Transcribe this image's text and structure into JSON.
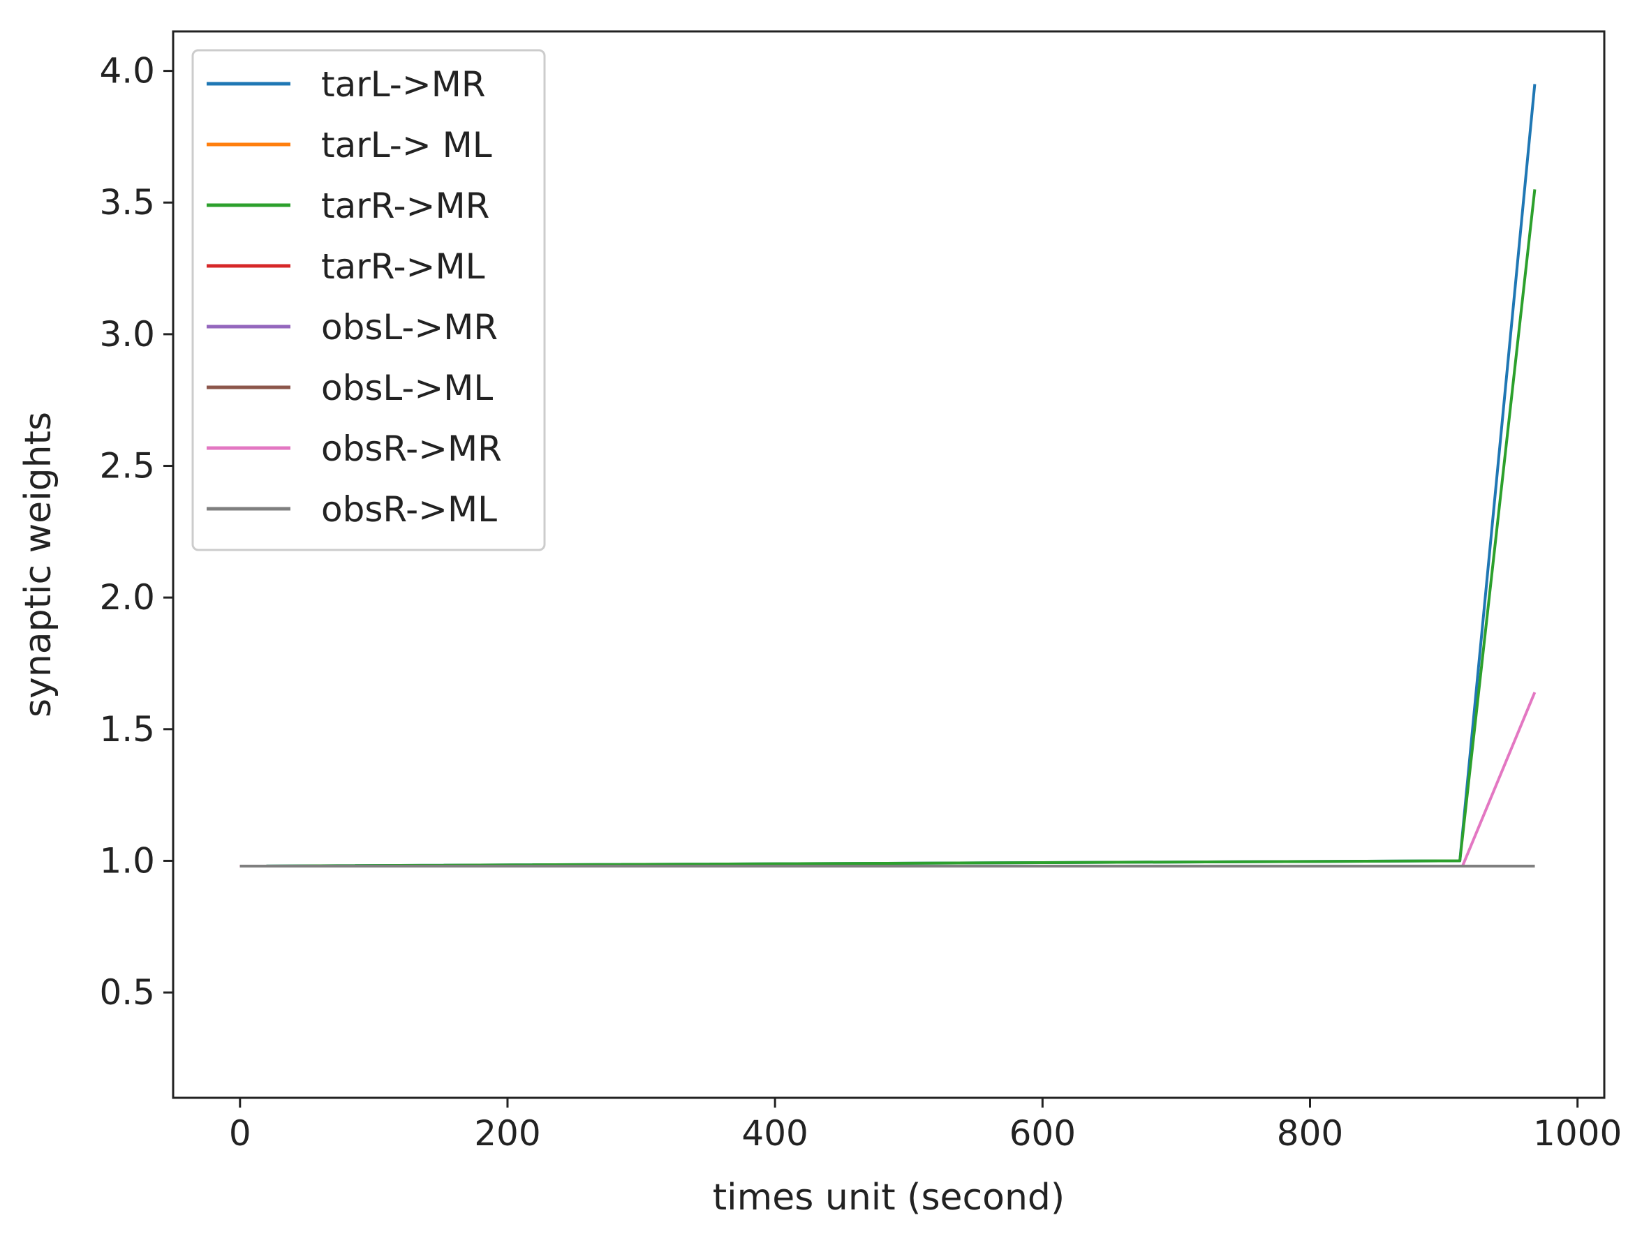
{
  "chart_data": {
    "type": "line",
    "title": "",
    "xlabel": "times unit (second)",
    "ylabel": "synaptic weights",
    "xlim": [
      -50,
      1020
    ],
    "ylim": [
      0.1,
      4.15
    ],
    "xticks": [
      0,
      200,
      400,
      600,
      800,
      1000
    ],
    "yticks": [
      0.5,
      1.0,
      1.5,
      2.0,
      2.5,
      3.0,
      3.5,
      4.0
    ],
    "xtick_labels": [
      "0",
      "200",
      "400",
      "600",
      "800",
      "1000"
    ],
    "ytick_labels": [
      "0.5",
      "1.0",
      "1.5",
      "2.0",
      "2.5",
      "3.0",
      "3.5",
      "4.0"
    ],
    "grid": false,
    "legend_position": "top-left",
    "series": [
      {
        "name": "tarL->MR",
        "color": "#1f77b4",
        "x": [
          0,
          912,
          968
        ],
        "y": [
          0.98,
          1.0,
          3.95
        ]
      },
      {
        "name": "tarL-> ML",
        "color": "#ff7f0e",
        "x": [
          0,
          968
        ],
        "y": [
          0.98,
          0.98
        ]
      },
      {
        "name": "tarR->MR",
        "color": "#2ca02c",
        "x": [
          0,
          912,
          968
        ],
        "y": [
          0.98,
          1.0,
          3.55
        ]
      },
      {
        "name": "tarR->ML",
        "color": "#d62728",
        "x": [
          0,
          968
        ],
        "y": [
          0.98,
          0.98
        ]
      },
      {
        "name": "obsL->MR",
        "color": "#9467bd",
        "x": [
          0,
          968
        ],
        "y": [
          0.98,
          0.98
        ]
      },
      {
        "name": "obsL->ML",
        "color": "#8c564b",
        "x": [
          0,
          968
        ],
        "y": [
          0.98,
          0.98
        ]
      },
      {
        "name": "obsR->MR",
        "color": "#e377c2",
        "x": [
          0,
          914,
          968
        ],
        "y": [
          0.98,
          0.98,
          1.64
        ]
      },
      {
        "name": "obsR->ML",
        "color": "#7f7f7f",
        "x": [
          0,
          968
        ],
        "y": [
          0.98,
          0.98
        ]
      }
    ]
  }
}
